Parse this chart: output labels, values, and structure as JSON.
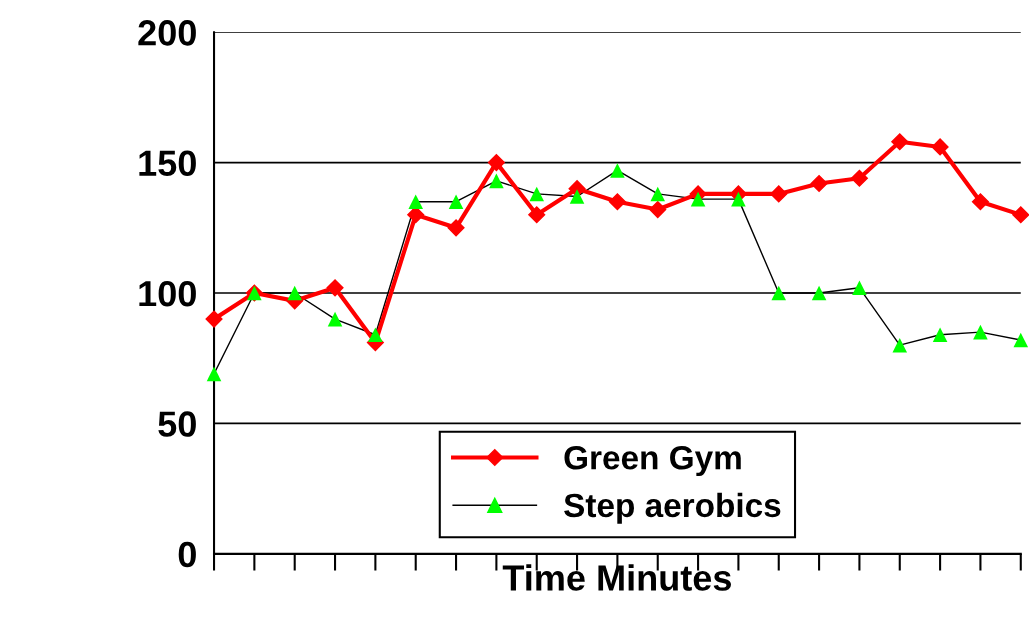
{
  "chart_data": {
    "type": "line",
    "xlabel": "Time Minutes",
    "categories": [
      null,
      null,
      null,
      null,
      null,
      null,
      null,
      null,
      null,
      null,
      null,
      null,
      null,
      null,
      null,
      null,
      null,
      null,
      null,
      null,
      null
    ],
    "series": [
      {
        "name": "Green Gym",
        "color": "#ff0000",
        "marker": "diamond",
        "line_style": "solid",
        "values": [
          90,
          100,
          97,
          102,
          81,
          130,
          125,
          150,
          130,
          140,
          135,
          132,
          138,
          138,
          138,
          142,
          144,
          158,
          156,
          135,
          130
        ]
      },
      {
        "name": "Step aerobics",
        "color": "#000000",
        "colors": [
          "#00ff00",
          "#00ff00",
          "#00ff00",
          "#00ff00",
          "#00ff00",
          "#00ff00",
          "#00ff00",
          "#00ff00",
          "#00ff00",
          "#00ff00",
          "#00ff00",
          "#00ff00",
          "#00ff00",
          "#00ff00",
          "#00ff00",
          "#00ff00",
          "#00ff00",
          "#00ff00",
          "#00ff00",
          "#00ff00",
          "#00ff00"
        ],
        "marker": "triangle",
        "line_style": "solid",
        "values": [
          69,
          100,
          100,
          90,
          84,
          135,
          135,
          143,
          138,
          137,
          147,
          138,
          136,
          136,
          100,
          100,
          102,
          80,
          84,
          85,
          82
        ]
      }
    ],
    "ylim": [
      0,
      200
    ],
    "yticks": [
      0,
      50,
      100,
      150,
      200
    ],
    "grid": "y",
    "legend": "bottom"
  }
}
